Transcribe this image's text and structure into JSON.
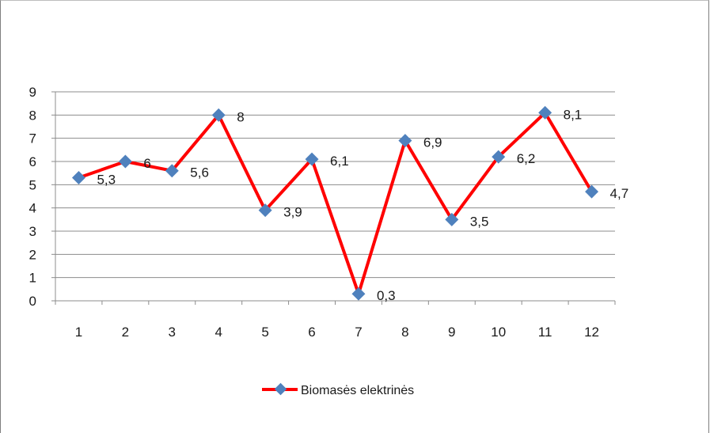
{
  "chart_data": {
    "type": "line",
    "title": "",
    "xlabel": "",
    "ylabel": "",
    "categories": [
      "1",
      "2",
      "3",
      "4",
      "5",
      "6",
      "7",
      "8",
      "9",
      "10",
      "11",
      "12"
    ],
    "yticks": [
      "0",
      "1",
      "2",
      "3",
      "4",
      "5",
      "6",
      "7",
      "8",
      "9"
    ],
    "ylim": [
      0,
      9
    ],
    "grid": true,
    "legend_position": "bottom",
    "series": [
      {
        "name": "Biomasės elektrinės",
        "values": [
          5.3,
          6,
          5.6,
          8,
          3.9,
          6.1,
          0.3,
          6.9,
          3.5,
          6.2,
          8.1,
          4.7
        ],
        "data_labels": [
          "5,3",
          "6",
          "5,6",
          "8",
          "3,9",
          "6,1",
          "0,3",
          "6,9",
          "3,5",
          "6,2",
          "8,1",
          "4,7"
        ],
        "line_color": "#ff0000",
        "marker_color": "#4f81bd",
        "marker": "diamond"
      }
    ]
  }
}
